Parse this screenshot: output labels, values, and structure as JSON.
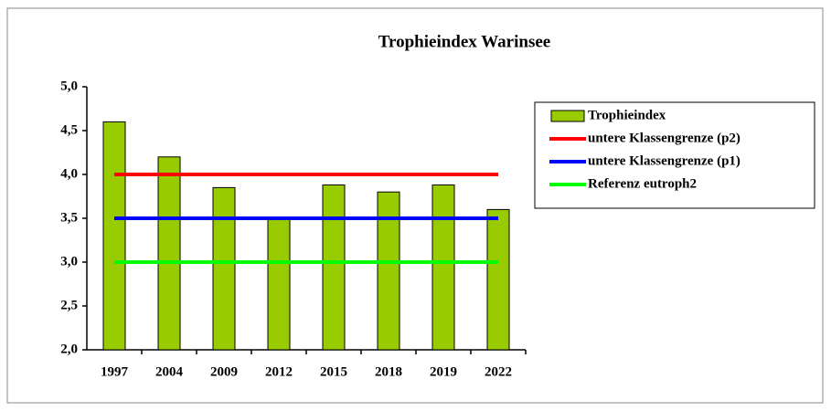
{
  "chart_data": {
    "type": "bar",
    "title": "Trophieindex Warinsee",
    "categories": [
      "1997",
      "2004",
      "2009",
      "2012",
      "2015",
      "2018",
      "2019",
      "2022"
    ],
    "series": [
      {
        "name": "Trophieindex",
        "type": "bar",
        "color": "#99cc00",
        "values": [
          4.6,
          4.2,
          3.85,
          3.5,
          3.88,
          3.8,
          3.88,
          3.6
        ]
      },
      {
        "name": "untere Klassengrenze (p2)",
        "type": "line",
        "color": "#ff0000",
        "values": [
          4.0,
          4.0,
          4.0,
          4.0,
          4.0,
          4.0,
          4.0,
          4.0
        ]
      },
      {
        "name": "untere Klassengrenze (p1)",
        "type": "line",
        "color": "#0000ff",
        "values": [
          3.5,
          3.5,
          3.5,
          3.5,
          3.5,
          3.5,
          3.5,
          3.5
        ]
      },
      {
        "name": "Referenz eutroph2",
        "type": "line",
        "color": "#00ff00",
        "values": [
          3.0,
          3.0,
          3.0,
          3.0,
          3.0,
          3.0,
          3.0,
          3.0
        ]
      }
    ],
    "ylim": [
      2.0,
      5.0
    ],
    "yticks": [
      {
        "value": 2.0,
        "label": "2,0"
      },
      {
        "value": 2.5,
        "label": "2,5"
      },
      {
        "value": 3.0,
        "label": "3,0"
      },
      {
        "value": 3.5,
        "label": "3,5"
      },
      {
        "value": 4.0,
        "label": "4,0"
      },
      {
        "value": 4.5,
        "label": "4,5"
      },
      {
        "value": 5.0,
        "label": "5,0"
      }
    ],
    "grid": false,
    "legend": "right"
  }
}
